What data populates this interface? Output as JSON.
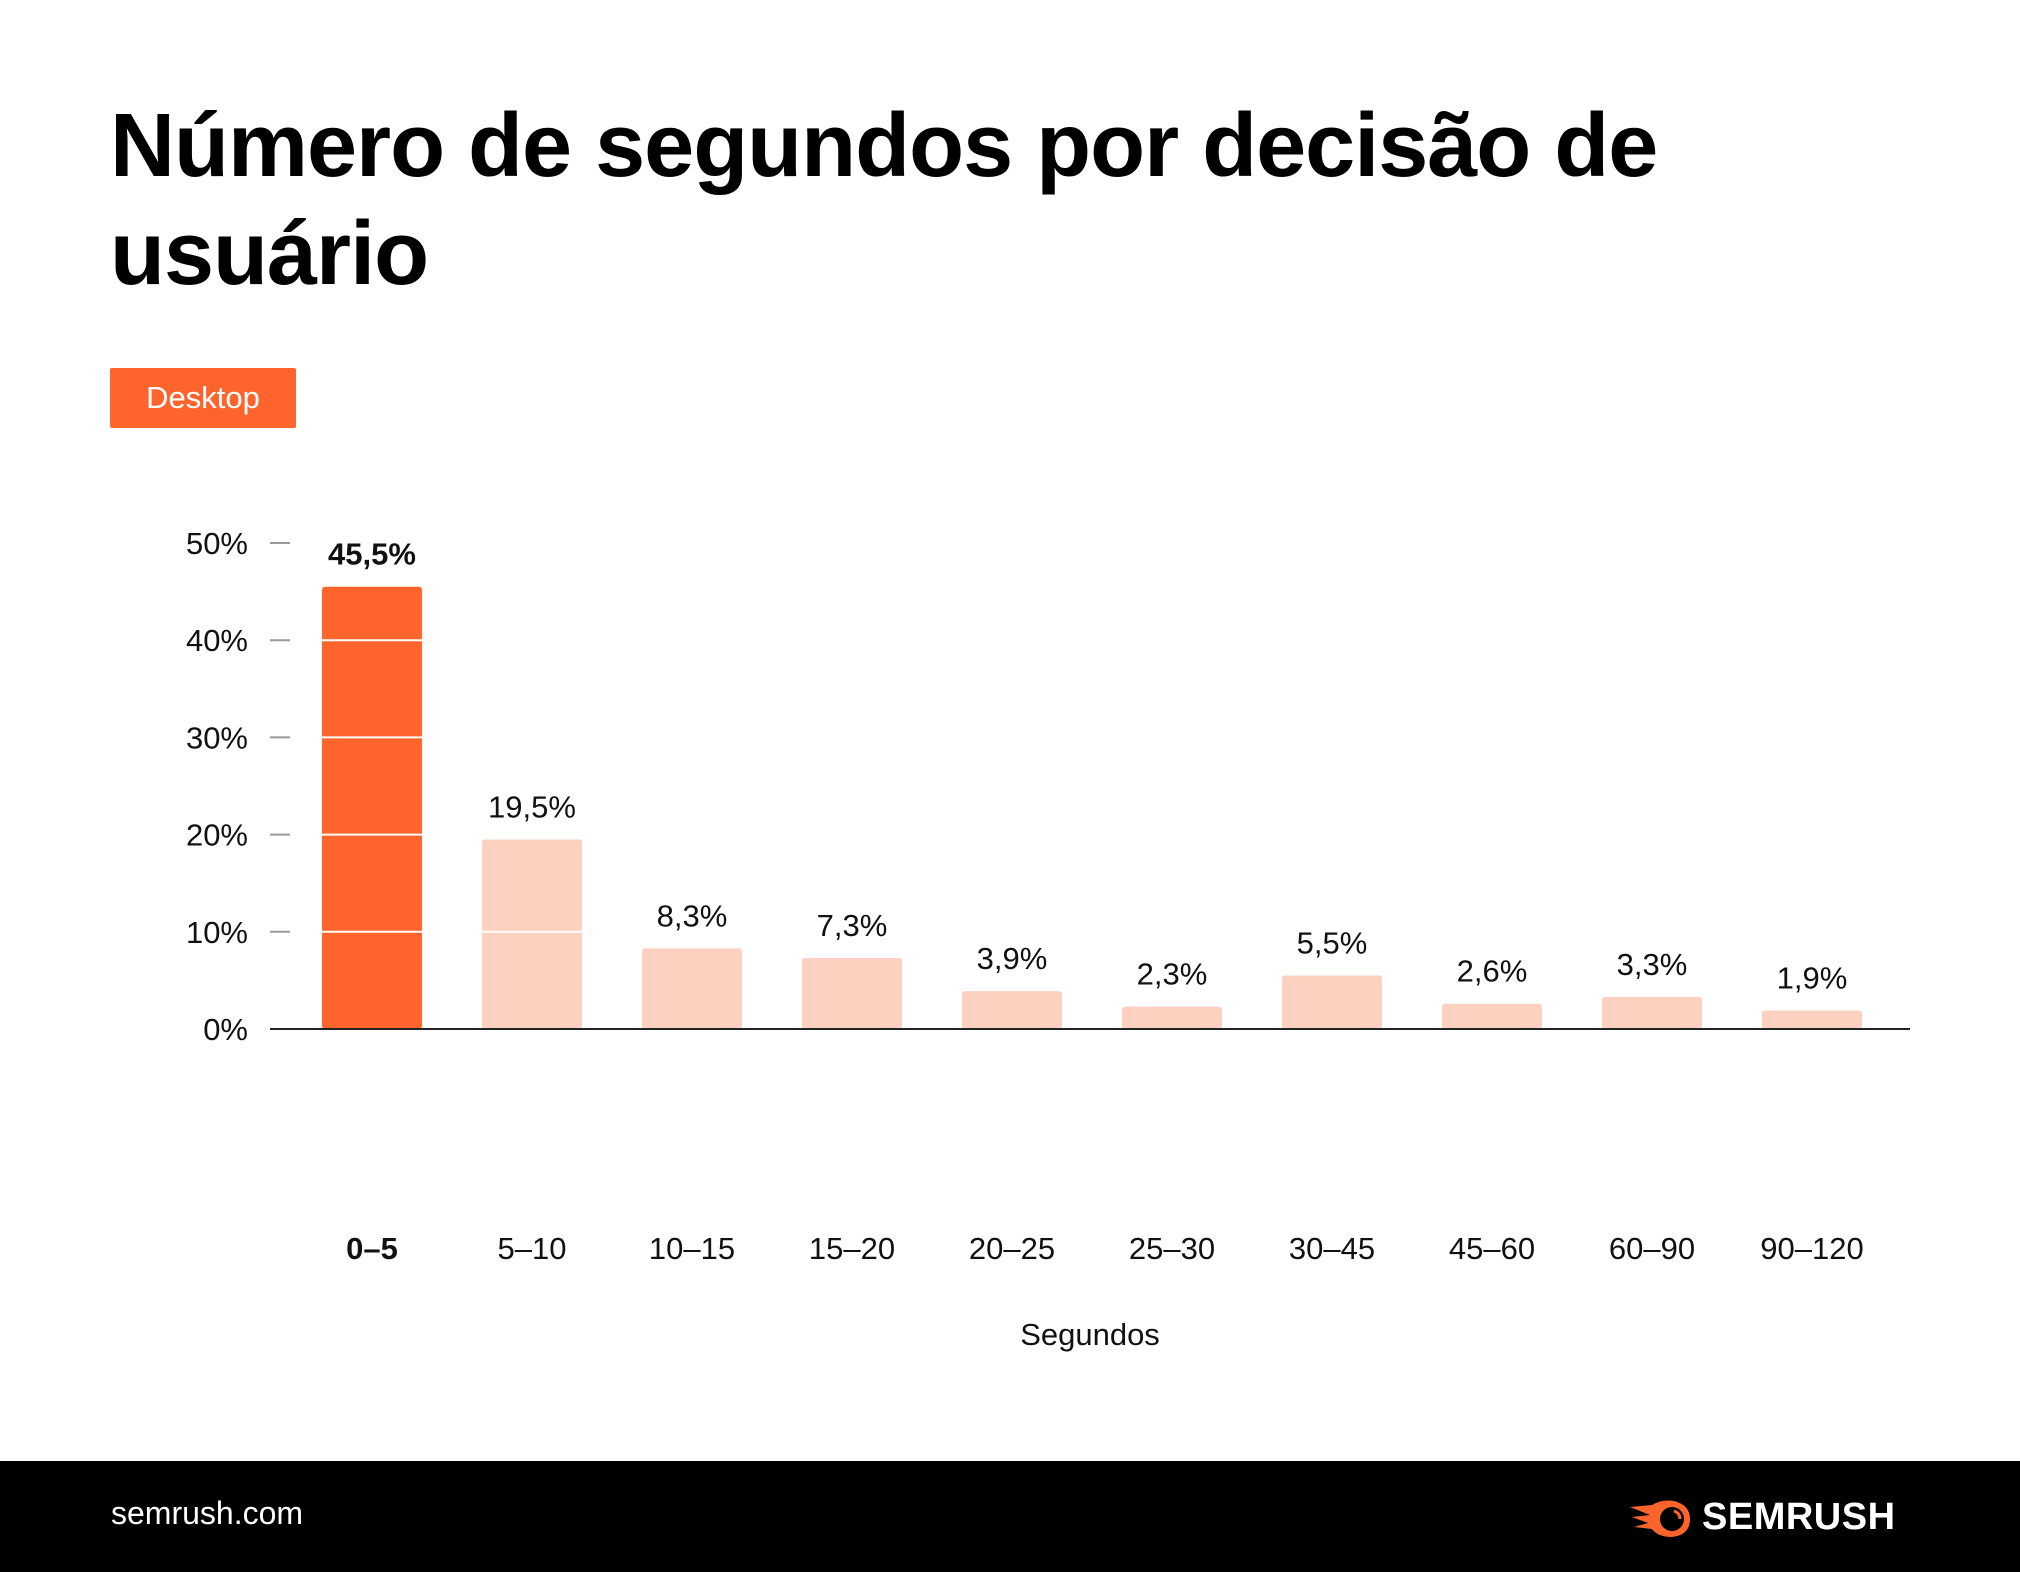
{
  "chart_data": {
    "type": "bar",
    "title": "Número de segundos por decisão de usuário",
    "legend": "Desktop",
    "legend_placement": "top-left",
    "xlabel": "Segundos",
    "ylabel": "",
    "categories": [
      "0–5",
      "5–10",
      "10–15",
      "15–20",
      "20–25",
      "25–30",
      "30–45",
      "45–60",
      "60–90",
      "90–120"
    ],
    "values": [
      45.5,
      19.5,
      8.3,
      7.3,
      3.9,
      2.3,
      5.5,
      2.6,
      3.3,
      1.9
    ],
    "data_labels": [
      "45,5%",
      "19,5%",
      "8,3%",
      "7,3%",
      "3,9%",
      "2,3%",
      "5,5%",
      "2,6%",
      "3,3%",
      "1,9%"
    ],
    "ylim": [
      0,
      50
    ],
    "yticks": [
      0,
      10,
      20,
      30,
      40,
      50
    ],
    "ytick_labels": [
      "0%",
      "10%",
      "20%",
      "30%",
      "40%",
      "50%"
    ],
    "highlight_index": 0,
    "colors": {
      "highlight": "#ff642d",
      "bar": "#fdd0c0",
      "axis": "#222222",
      "tick": "#999999"
    },
    "grid": false
  },
  "footer": {
    "site": "semrush.com",
    "brand": "SEMRUSH",
    "logo_icon": "semrush-fireball-icon"
  }
}
